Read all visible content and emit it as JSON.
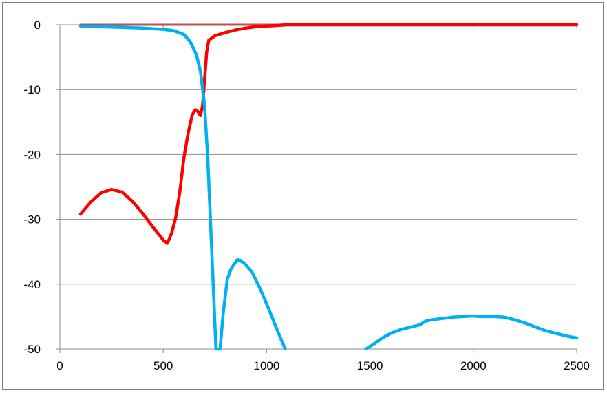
{
  "chart_data": {
    "type": "line",
    "title": "",
    "xlabel": "",
    "ylabel": "",
    "xlim": [
      0,
      2500
    ],
    "ylim": [
      -50,
      0
    ],
    "x_ticks": [
      0,
      500,
      1000,
      1500,
      2000,
      2500
    ],
    "y_ticks": [
      0,
      -10,
      -20,
      -30,
      -40,
      -50
    ],
    "grid": "horizontal",
    "legend": "none",
    "series": [
      {
        "color": "#c0504d",
        "points": [
          [
            100,
            0
          ],
          [
            2500,
            0
          ]
        ]
      },
      {
        "color": "#ff0000",
        "points": [
          [
            100,
            -29.2
          ],
          [
            150,
            -27.3
          ],
          [
            200,
            -25.9
          ],
          [
            250,
            -25.4
          ],
          [
            300,
            -25.8
          ],
          [
            350,
            -27.2
          ],
          [
            400,
            -29.1
          ],
          [
            450,
            -31.2
          ],
          [
            500,
            -33.2
          ],
          [
            520,
            -33.7
          ],
          [
            540,
            -32.2
          ],
          [
            560,
            -29.8
          ],
          [
            580,
            -25.8
          ],
          [
            600,
            -20.5
          ],
          [
            620,
            -16.8
          ],
          [
            640,
            -13.9
          ],
          [
            655,
            -13.1
          ],
          [
            668,
            -13.4
          ],
          [
            680,
            -14.0
          ],
          [
            690,
            -12.5
          ],
          [
            700,
            -8.4
          ],
          [
            710,
            -4.2
          ],
          [
            720,
            -2.4
          ],
          [
            750,
            -1.7
          ],
          [
            800,
            -1.2
          ],
          [
            850,
            -0.8
          ],
          [
            900,
            -0.5
          ],
          [
            950,
            -0.3
          ],
          [
            1000,
            -0.2
          ],
          [
            1100,
            0
          ],
          [
            2500,
            0
          ]
        ]
      },
      {
        "color": "#00b0f0",
        "points": [
          [
            100,
            -0.2
          ],
          [
            200,
            -0.3
          ],
          [
            300,
            -0.4
          ],
          [
            400,
            -0.5
          ],
          [
            500,
            -0.7
          ],
          [
            550,
            -0.9
          ],
          [
            600,
            -1.5
          ],
          [
            630,
            -2.6
          ],
          [
            660,
            -4.6
          ],
          [
            680,
            -7.2
          ],
          [
            700,
            -12.5
          ],
          [
            715,
            -20.5
          ],
          [
            730,
            -31.5
          ],
          [
            745,
            -42.5
          ],
          [
            755,
            -50
          ],
          [
            775,
            -50
          ],
          [
            790,
            -44.5
          ],
          [
            810,
            -39.2
          ],
          [
            830,
            -37.5
          ],
          [
            860,
            -36.2
          ],
          [
            890,
            -36.7
          ],
          [
            930,
            -38.2
          ],
          [
            970,
            -40.8
          ],
          [
            1010,
            -43.8
          ],
          [
            1050,
            -47
          ],
          [
            1090,
            -50
          ],
          [
            1480,
            -50
          ],
          [
            1520,
            -49.2
          ],
          [
            1560,
            -48.3
          ],
          [
            1600,
            -47.6
          ],
          [
            1650,
            -47.0
          ],
          [
            1700,
            -46.6
          ],
          [
            1740,
            -46.3
          ],
          [
            1770,
            -45.7
          ],
          [
            1800,
            -45.5
          ],
          [
            1850,
            -45.3
          ],
          [
            1900,
            -45.1
          ],
          [
            1950,
            -45.0
          ],
          [
            2000,
            -44.9
          ],
          [
            2030,
            -45.0
          ],
          [
            2100,
            -45.0
          ],
          [
            2150,
            -45.1
          ],
          [
            2200,
            -45.5
          ],
          [
            2250,
            -46.0
          ],
          [
            2300,
            -46.6
          ],
          [
            2350,
            -47.2
          ],
          [
            2400,
            -47.6
          ],
          [
            2450,
            -48.0
          ],
          [
            2500,
            -48.3
          ]
        ]
      }
    ]
  }
}
